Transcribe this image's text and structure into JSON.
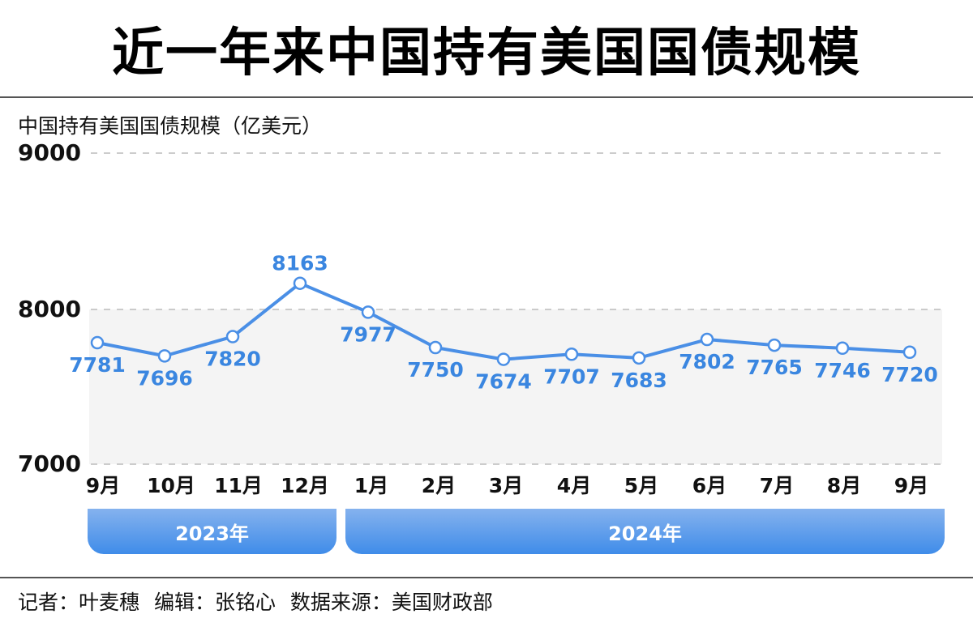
{
  "header": {
    "title": "近一年来中国持有美国国债规模"
  },
  "chart": {
    "unit_label": "中国持有美国国债规模（亿美元）",
    "y_ticks": [
      "9000",
      "8000",
      "7000"
    ],
    "x_labels": [
      "9月",
      "10月",
      "11月",
      "12月",
      "1月",
      "2月",
      "3月",
      "4月",
      "5月",
      "6月",
      "7月",
      "8月",
      "9月"
    ],
    "value_labels": [
      "7781",
      "7696",
      "7820",
      "8163",
      "7977",
      "7750",
      "7674",
      "7707",
      "7683",
      "7802",
      "7765",
      "7746",
      "7720"
    ],
    "year_bands": [
      "2023年",
      "2024年"
    ],
    "line_color": "#4a8fe6",
    "label_color": "#3a86e0",
    "band_fill": "#f4f4f4"
  },
  "footer": {
    "credits": "记者：叶麦穗  编辑：张铭心  数据来源：美国财政部"
  },
  "chart_data": {
    "type": "line",
    "title": "近一年来中国持有美国国债规模",
    "ylabel": "中国持有美国国债规模（亿美元）",
    "xlabel": "",
    "categories": [
      "2023-09",
      "2023-10",
      "2023-11",
      "2023-12",
      "2024-01",
      "2024-02",
      "2024-03",
      "2024-04",
      "2024-05",
      "2024-06",
      "2024-07",
      "2024-08",
      "2024-09"
    ],
    "x_tick_labels": [
      "9月",
      "10月",
      "11月",
      "12月",
      "1月",
      "2月",
      "3月",
      "4月",
      "5月",
      "6月",
      "7月",
      "8月",
      "9月"
    ],
    "x_groups": [
      {
        "label": "2023年",
        "span": [
          "9月",
          "12月"
        ]
      },
      {
        "label": "2024年",
        "span": [
          "1月",
          "9月"
        ]
      }
    ],
    "series": [
      {
        "name": "中国持有美国国债规模",
        "values": [
          7781,
          7696,
          7820,
          8163,
          7977,
          7750,
          7674,
          7707,
          7683,
          7802,
          7765,
          7746,
          7720
        ]
      }
    ],
    "ylim": [
      7000,
      9000
    ],
    "y_ticks": [
      7000,
      8000,
      9000
    ],
    "grid": "dashed horizontal",
    "legend": "none",
    "source": "美国财政部"
  }
}
